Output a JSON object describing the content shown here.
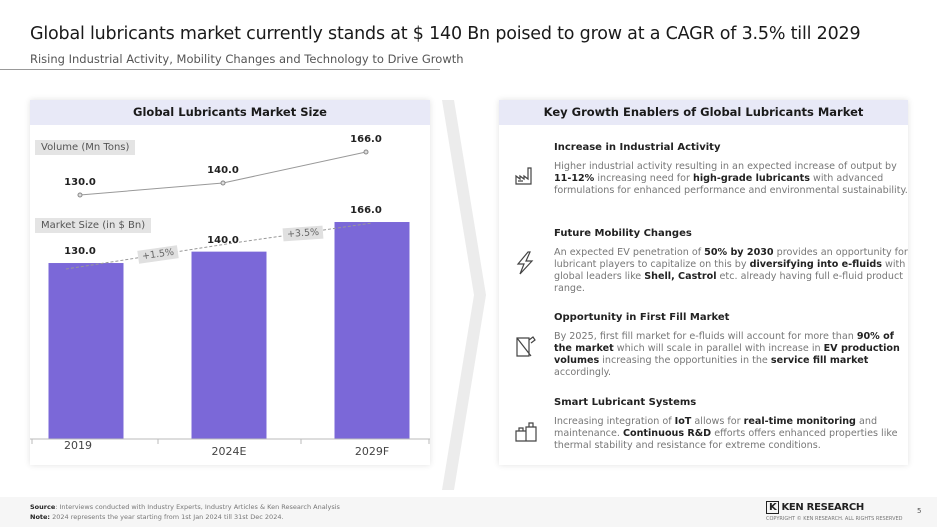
{
  "title": "Global lubricants market currently stands at $ 140 Bn poised to grow at a CAGR of 3.5% till 2029",
  "subtitle": "Rising Industrial Activity, Mobility Changes and Technology to Drive Growth",
  "left_panel": {
    "header": "Global Lubricants Market Size",
    "volume_tag": "Volume (Mn Tons)",
    "market_tag": "Market Size (in $ Bn)",
    "cagr_labels": [
      "+1.5%",
      "+3.5%"
    ]
  },
  "chart_data": {
    "type": "bar+line",
    "categories": [
      "2019",
      "2024E",
      "2029F"
    ],
    "series": [
      {
        "name": "Market Size (in $ Bn)",
        "type": "bar",
        "values": [
          130.0,
          140.0,
          166.0
        ],
        "labels": [
          "130.0",
          "140.0",
          "166.0"
        ],
        "color": "#7b68d8"
      },
      {
        "name": "Volume (Mn Tons)",
        "type": "line",
        "values": [
          130.0,
          140.0,
          166.0
        ],
        "labels": [
          "130.0",
          "140.0",
          "166.0"
        ],
        "color": "#999999"
      }
    ],
    "annotations": [
      "+1.5%",
      "+3.5%"
    ],
    "grid": false
  },
  "right_panel": {
    "header": "Key Growth Enablers of Global Lubricants Market",
    "items": [
      {
        "icon": "factory-icon",
        "title": "Increase in Industrial Activity",
        "text": [
          {
            "t": "Higher industrial activity resulting in an expected increase of output by "
          },
          {
            "t": "11-12%",
            "b": true
          },
          {
            "t": " increasing need for "
          },
          {
            "t": "high-grade lubricants",
            "b": true
          },
          {
            "t": " with advanced formulations for enhanced performance and environmental sustainability."
          }
        ]
      },
      {
        "icon": "lightning-icon",
        "title": "Future Mobility Changes",
        "text": [
          {
            "t": "An expected EV penetration of "
          },
          {
            "t": "50% by 2030",
            "b": true
          },
          {
            "t": " provides an opportunity for lubricant players to capitalize on this by "
          },
          {
            "t": "diversifying into e-fluids",
            "b": true
          },
          {
            "t": " with global leaders like "
          },
          {
            "t": "Shell, Castrol",
            "b": true
          },
          {
            "t": " etc. already having full e-fluid product range."
          }
        ]
      },
      {
        "icon": "oil-can-icon",
        "title": "Opportunity in First Fill Market",
        "text": [
          {
            "t": "By 2025, first fill market for e-fluids will account for more than "
          },
          {
            "t": "90% of the market",
            "b": true
          },
          {
            "t": " which will scale in parallel with increase in "
          },
          {
            "t": "EV production volumes",
            "b": true
          },
          {
            "t": " increasing the opportunities in the "
          },
          {
            "t": "service fill market",
            "b": true
          },
          {
            "t": " accordingly."
          }
        ]
      },
      {
        "icon": "lubricant-bottles-icon",
        "title": "Smart Lubricant Systems",
        "text": [
          {
            "t": "Increasing integration of "
          },
          {
            "t": "IoT",
            "b": true
          },
          {
            "t": " allows for "
          },
          {
            "t": "real-time monitoring",
            "b": true
          },
          {
            "t": " and maintenance. "
          },
          {
            "t": "Continuous R&D",
            "b": true
          },
          {
            "t": " efforts offers enhanced properties like thermal stability and resistance for extreme conditions."
          }
        ]
      }
    ]
  },
  "footer": {
    "source_label": "Source",
    "source": ": Interviews conducted with Industry Experts, Industry Articles & Ken Research Analysis",
    "note_label": "Note:",
    "note": " 2024 represents the year starting from 1st Jan 2024 till 31st Dec 2024.",
    "brand": "KEN RESEARCH",
    "copyright": "COPYRIGHT © KEN RESEARCH. ALL RIGHTS RESERVED",
    "page": "5"
  }
}
